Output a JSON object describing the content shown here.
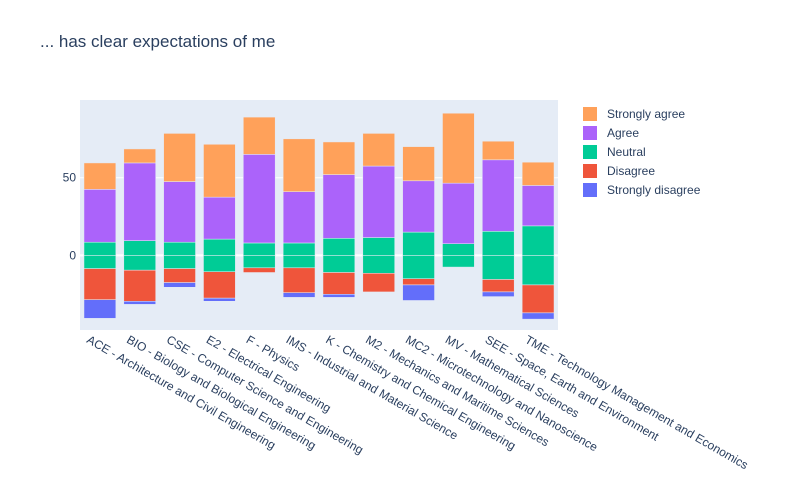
{
  "chart_data": {
    "type": "bar",
    "title": "... has clear expectations of me",
    "barmode": "diverging-stacked",
    "xlabel": "",
    "ylabel": "",
    "ylim": [
      -48,
      100
    ],
    "yticks": [
      0,
      50
    ],
    "grid": true,
    "legend_position": "top-right",
    "categories": [
      "ACE - Architecture and Civil Engineering",
      "BIO - Biology and Biological Engineering",
      "CSE - Computer Science and Engineering",
      "E2 - Electrical Engineering",
      "F - Physics",
      "IMS - Industrial and Material Science",
      "K - Chemistry and Chemical Engineering",
      "M2 - Mechanics and Maritime Sciences",
      "MC2 - Microtechnology and Nanoscience",
      "MV - Mathematical Sciences",
      "SEE - Space, Earth and Environment",
      "TME - Technology Management and Economics"
    ],
    "series": [
      {
        "name": "Strongly disagree",
        "color": "#636efa",
        "values": [
          12,
          2,
          3,
          2,
          0,
          3,
          2,
          0,
          10,
          0,
          3,
          4
        ]
      },
      {
        "name": "Disagree",
        "color": "#ef553b",
        "values": [
          20,
          20,
          9,
          17,
          3,
          16,
          14,
          12,
          4,
          0,
          8,
          18
        ]
      },
      {
        "name": "Neutral",
        "color": "#00cc96",
        "values": [
          17,
          19,
          17,
          21,
          16,
          16,
          22,
          23,
          30,
          15,
          31,
          38
        ]
      },
      {
        "name": "Agree",
        "color": "#ab63fa",
        "values": [
          34,
          50,
          39,
          27,
          57,
          33,
          41,
          46,
          33,
          39,
          46,
          26
        ]
      },
      {
        "name": "Strongly agree",
        "color": "#ffa15a",
        "values": [
          17,
          9,
          31,
          34,
          24,
          34,
          21,
          21,
          22,
          45,
          12,
          15
        ]
      }
    ]
  }
}
